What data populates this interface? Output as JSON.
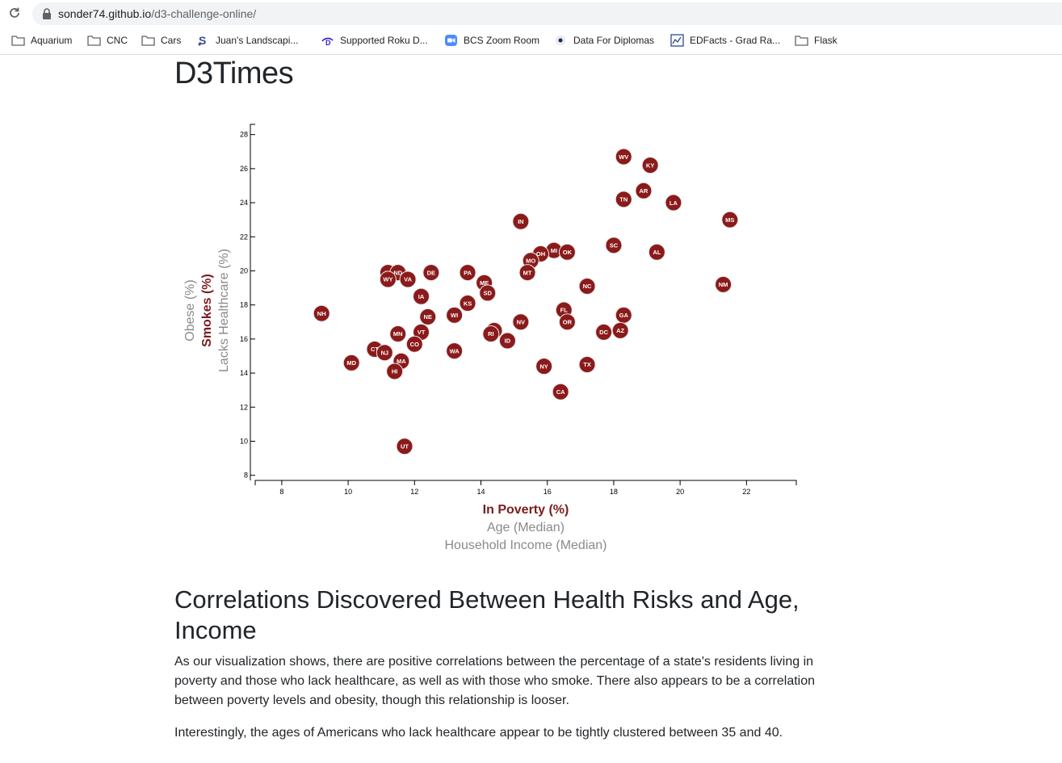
{
  "browser": {
    "url_host": "sonder74.github.io",
    "url_path": "/d3-challenge-online/",
    "bookmarks": [
      {
        "label": "Aquarium",
        "icon": "folder-icon"
      },
      {
        "label": "CNC",
        "icon": "folder-icon"
      },
      {
        "label": "Cars",
        "icon": "folder-icon"
      },
      {
        "label": "Juan's Landscapi...",
        "icon": "site-s-icon"
      },
      {
        "label": "Supported Roku D...",
        "icon": "site-d-icon"
      },
      {
        "label": "BCS Zoom Room",
        "icon": "zoom-icon"
      },
      {
        "label": "Data For Diplomas",
        "icon": "site-dot-icon"
      },
      {
        "label": "EDFacts - Grad Ra...",
        "icon": "site-ed-icon"
      },
      {
        "label": "Flask",
        "icon": "folder-icon"
      }
    ]
  },
  "page": {
    "title": "D3Times",
    "section_heading": "Correlations Discovered Between Health Risks and Age, Income",
    "paragraph1": "As our visualization shows, there are positive correlations between the percentage of a state's residents living in poverty and those who lack healthcare, as well as with those who smoke. There also appears to be a correlation between poverty levels and obesity, though this relationship is looser.",
    "paragraph2": "Interestingly, the ages of Americans who lack healthcare appear to be tightly clustered between 35 and 40."
  },
  "chart_data": {
    "type": "scatter",
    "x_axis_labels": [
      {
        "text": "In Poverty (%)",
        "active": true
      },
      {
        "text": "Age (Median)",
        "active": false
      },
      {
        "text": "Household Income (Median)",
        "active": false
      }
    ],
    "y_axis_labels": [
      {
        "text": "Obese (%)",
        "active": false
      },
      {
        "text": "Smokes (%)",
        "active": true
      },
      {
        "text": "Lacks Healthcare (%)",
        "active": false
      }
    ],
    "xlim": [
      7.2,
      23.5
    ],
    "ylim": [
      7.7,
      28.6
    ],
    "x_ticks": [
      8,
      10,
      12,
      14,
      16,
      18,
      20,
      22
    ],
    "y_ticks": [
      8,
      10,
      12,
      14,
      16,
      18,
      20,
      22,
      24,
      26,
      28
    ],
    "marker_color": "#8b1a1a",
    "points": [
      {
        "abbr": "WV",
        "x": 18.3,
        "y": 26.7
      },
      {
        "abbr": "KY",
        "x": 19.1,
        "y": 26.2
      },
      {
        "abbr": "AR",
        "x": 18.9,
        "y": 24.7
      },
      {
        "abbr": "TN",
        "x": 18.3,
        "y": 24.2
      },
      {
        "abbr": "LA",
        "x": 19.8,
        "y": 24.0
      },
      {
        "abbr": "IN",
        "x": 15.2,
        "y": 22.9
      },
      {
        "abbr": "MS",
        "x": 21.5,
        "y": 23.0
      },
      {
        "abbr": "SC",
        "x": 18.0,
        "y": 21.5
      },
      {
        "abbr": "AL",
        "x": 19.3,
        "y": 21.1
      },
      {
        "abbr": "MI",
        "x": 16.2,
        "y": 21.2
      },
      {
        "abbr": "OK",
        "x": 16.6,
        "y": 21.1
      },
      {
        "abbr": "OH",
        "x": 15.8,
        "y": 21.0
      },
      {
        "abbr": "MO",
        "x": 15.5,
        "y": 20.6
      },
      {
        "abbr": "MT",
        "x": 15.4,
        "y": 19.9
      },
      {
        "abbr": "AK",
        "x": 11.2,
        "y": 19.9
      },
      {
        "abbr": "ND",
        "x": 11.5,
        "y": 19.9
      },
      {
        "abbr": "WY",
        "x": 11.2,
        "y": 19.5
      },
      {
        "abbr": "VA",
        "x": 11.8,
        "y": 19.5
      },
      {
        "abbr": "DE",
        "x": 12.5,
        "y": 19.9
      },
      {
        "abbr": "PA",
        "x": 13.6,
        "y": 19.9
      },
      {
        "abbr": "ME",
        "x": 14.1,
        "y": 19.3
      },
      {
        "abbr": "NC",
        "x": 17.2,
        "y": 19.1
      },
      {
        "abbr": "NM",
        "x": 21.3,
        "y": 19.2
      },
      {
        "abbr": "SD",
        "x": 14.2,
        "y": 18.7
      },
      {
        "abbr": "IA",
        "x": 12.2,
        "y": 18.5
      },
      {
        "abbr": "KS",
        "x": 13.6,
        "y": 18.1
      },
      {
        "abbr": "NH",
        "x": 9.2,
        "y": 17.5
      },
      {
        "abbr": "WI",
        "x": 13.2,
        "y": 17.4
      },
      {
        "abbr": "NE",
        "x": 12.4,
        "y": 17.3
      },
      {
        "abbr": "FL",
        "x": 16.5,
        "y": 17.7
      },
      {
        "abbr": "GA",
        "x": 18.3,
        "y": 17.4
      },
      {
        "abbr": "NV",
        "x": 15.2,
        "y": 17.0
      },
      {
        "abbr": "OR",
        "x": 16.6,
        "y": 17.0
      },
      {
        "abbr": "IL",
        "x": 14.4,
        "y": 16.5
      },
      {
        "abbr": "RI",
        "x": 14.3,
        "y": 16.3
      },
      {
        "abbr": "VT",
        "x": 12.2,
        "y": 16.4
      },
      {
        "abbr": "MN",
        "x": 11.5,
        "y": 16.3
      },
      {
        "abbr": "DC",
        "x": 17.7,
        "y": 16.4
      },
      {
        "abbr": "AZ",
        "x": 18.2,
        "y": 16.5
      },
      {
        "abbr": "ID",
        "x": 14.8,
        "y": 15.9
      },
      {
        "abbr": "CO",
        "x": 12.0,
        "y": 15.7
      },
      {
        "abbr": "CT",
        "x": 10.8,
        "y": 15.4
      },
      {
        "abbr": "NJ",
        "x": 11.1,
        "y": 15.2
      },
      {
        "abbr": "WA",
        "x": 13.2,
        "y": 15.3
      },
      {
        "abbr": "MD",
        "x": 10.1,
        "y": 14.6
      },
      {
        "abbr": "MA",
        "x": 11.6,
        "y": 14.7
      },
      {
        "abbr": "HI",
        "x": 11.4,
        "y": 14.1
      },
      {
        "abbr": "NY",
        "x": 15.9,
        "y": 14.4
      },
      {
        "abbr": "TX",
        "x": 17.2,
        "y": 14.5
      },
      {
        "abbr": "CA",
        "x": 16.4,
        "y": 12.9
      },
      {
        "abbr": "UT",
        "x": 11.7,
        "y": 9.7
      }
    ]
  }
}
